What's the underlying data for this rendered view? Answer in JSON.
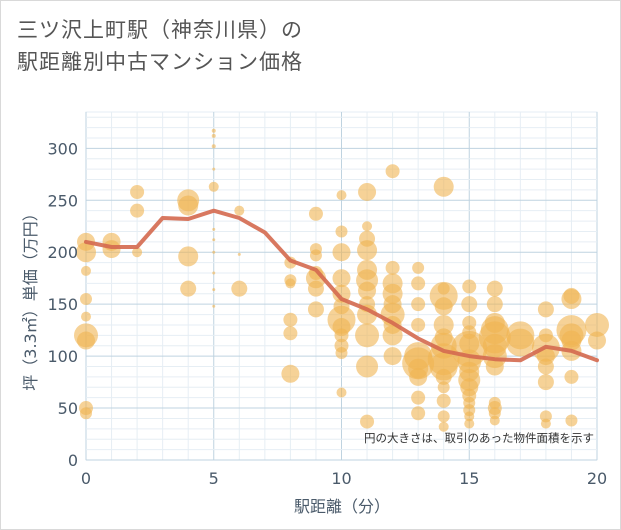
{
  "chart_data": {
    "type": "scatter",
    "title_lines": [
      "三ツ沢上町駅（神奈川県）の",
      "駅距離別中古マンション価格"
    ],
    "xlabel": "駅距離（分）",
    "ylabel": "坪（3.3㎡）単価（万円）",
    "xlim": [
      0,
      20
    ],
    "ylim": [
      0,
      335
    ],
    "xticks": [
      0,
      5,
      10,
      15,
      20
    ],
    "yticks": [
      0,
      50,
      100,
      150,
      200,
      250,
      300
    ],
    "note": "円の大きさは、取引のあった物件面積を示す",
    "colors": {
      "bubble": "#f0b451",
      "trend": "#d4694f",
      "grid": "#e6eef4",
      "gridStrong": "#bfd3e0"
    },
    "bubbles": [
      {
        "x": 0,
        "y": 210,
        "s": 9
      },
      {
        "x": 0,
        "y": 200,
        "s": 10
      },
      {
        "x": 0,
        "y": 182,
        "s": 5
      },
      {
        "x": 0,
        "y": 155,
        "s": 6
      },
      {
        "x": 0,
        "y": 138,
        "s": 5
      },
      {
        "x": 0,
        "y": 120,
        "s": 12
      },
      {
        "x": 0,
        "y": 115,
        "s": 9
      },
      {
        "x": 0,
        "y": 50,
        "s": 7
      },
      {
        "x": 0,
        "y": 45,
        "s": 6
      },
      {
        "x": 1,
        "y": 210,
        "s": 9
      },
      {
        "x": 1,
        "y": 203,
        "s": 9
      },
      {
        "x": 2,
        "y": 258,
        "s": 7
      },
      {
        "x": 2,
        "y": 240,
        "s": 7
      },
      {
        "x": 2,
        "y": 200,
        "s": 5
      },
      {
        "x": 4,
        "y": 250,
        "s": 11
      },
      {
        "x": 4,
        "y": 245,
        "s": 10
      },
      {
        "x": 4,
        "y": 196,
        "s": 10
      },
      {
        "x": 4,
        "y": 165,
        "s": 8
      },
      {
        "x": 5,
        "y": 317,
        "s": 2
      },
      {
        "x": 5,
        "y": 312,
        "s": 2
      },
      {
        "x": 5,
        "y": 302,
        "s": 2
      },
      {
        "x": 5,
        "y": 280,
        "s": 1.5
      },
      {
        "x": 5,
        "y": 263,
        "s": 5
      },
      {
        "x": 5,
        "y": 222,
        "s": 1.5
      },
      {
        "x": 5,
        "y": 212,
        "s": 1.5
      },
      {
        "x": 5,
        "y": 200,
        "s": 1.5
      },
      {
        "x": 5,
        "y": 180,
        "s": 1.5
      },
      {
        "x": 5,
        "y": 164,
        "s": 1.5
      },
      {
        "x": 5,
        "y": 148,
        "s": 1.5
      },
      {
        "x": 6,
        "y": 240,
        "s": 5
      },
      {
        "x": 6,
        "y": 198,
        "s": 1.5
      },
      {
        "x": 6,
        "y": 165,
        "s": 8
      },
      {
        "x": 8,
        "y": 190,
        "s": 6
      },
      {
        "x": 8,
        "y": 173,
        "s": 6
      },
      {
        "x": 8,
        "y": 170,
        "s": 5
      },
      {
        "x": 8,
        "y": 135,
        "s": 7
      },
      {
        "x": 8,
        "y": 122,
        "s": 7
      },
      {
        "x": 8,
        "y": 83,
        "s": 9
      },
      {
        "x": 9,
        "y": 237,
        "s": 7
      },
      {
        "x": 9,
        "y": 203,
        "s": 6
      },
      {
        "x": 9,
        "y": 197,
        "s": 6
      },
      {
        "x": 9,
        "y": 180,
        "s": 7
      },
      {
        "x": 9,
        "y": 175,
        "s": 10
      },
      {
        "x": 9,
        "y": 165,
        "s": 8
      },
      {
        "x": 9,
        "y": 145,
        "s": 8
      },
      {
        "x": 10,
        "y": 255,
        "s": 5
      },
      {
        "x": 10,
        "y": 220,
        "s": 6
      },
      {
        "x": 10,
        "y": 200,
        "s": 9
      },
      {
        "x": 10,
        "y": 175,
        "s": 9
      },
      {
        "x": 10,
        "y": 160,
        "s": 9
      },
      {
        "x": 10,
        "y": 148,
        "s": 8
      },
      {
        "x": 10,
        "y": 135,
        "s": 14
      },
      {
        "x": 10,
        "y": 128,
        "s": 9
      },
      {
        "x": 10,
        "y": 120,
        "s": 7
      },
      {
        "x": 10,
        "y": 110,
        "s": 7
      },
      {
        "x": 10,
        "y": 103,
        "s": 6
      },
      {
        "x": 10,
        "y": 65,
        "s": 5
      },
      {
        "x": 11,
        "y": 258,
        "s": 9
      },
      {
        "x": 11,
        "y": 225,
        "s": 5
      },
      {
        "x": 11,
        "y": 213,
        "s": 8
      },
      {
        "x": 11,
        "y": 202,
        "s": 10
      },
      {
        "x": 11,
        "y": 183,
        "s": 10
      },
      {
        "x": 11,
        "y": 173,
        "s": 11
      },
      {
        "x": 11,
        "y": 163,
        "s": 9
      },
      {
        "x": 11,
        "y": 150,
        "s": 8
      },
      {
        "x": 11,
        "y": 140,
        "s": 10
      },
      {
        "x": 11,
        "y": 120,
        "s": 12
      },
      {
        "x": 11,
        "y": 90,
        "s": 11
      },
      {
        "x": 11,
        "y": 37,
        "s": 7
      },
      {
        "x": 12,
        "y": 278,
        "s": 7
      },
      {
        "x": 12,
        "y": 185,
        "s": 7
      },
      {
        "x": 12,
        "y": 170,
        "s": 10
      },
      {
        "x": 12,
        "y": 160,
        "s": 10
      },
      {
        "x": 12,
        "y": 150,
        "s": 9
      },
      {
        "x": 12,
        "y": 140,
        "s": 12
      },
      {
        "x": 12,
        "y": 130,
        "s": 9
      },
      {
        "x": 12,
        "y": 120,
        "s": 10
      },
      {
        "x": 12,
        "y": 100,
        "s": 9
      },
      {
        "x": 13,
        "y": 185,
        "s": 6
      },
      {
        "x": 13,
        "y": 170,
        "s": 7
      },
      {
        "x": 13,
        "y": 150,
        "s": 7
      },
      {
        "x": 13,
        "y": 130,
        "s": 7
      },
      {
        "x": 13,
        "y": 100,
        "s": 14
      },
      {
        "x": 13,
        "y": 93,
        "s": 16
      },
      {
        "x": 13,
        "y": 88,
        "s": 10
      },
      {
        "x": 13,
        "y": 80,
        "s": 9
      },
      {
        "x": 13,
        "y": 60,
        "s": 7
      },
      {
        "x": 13,
        "y": 45,
        "s": 7
      },
      {
        "x": 14,
        "y": 263,
        "s": 10
      },
      {
        "x": 14,
        "y": 165,
        "s": 6
      },
      {
        "x": 14,
        "y": 158,
        "s": 14
      },
      {
        "x": 14,
        "y": 148,
        "s": 9
      },
      {
        "x": 14,
        "y": 130,
        "s": 10
      },
      {
        "x": 14,
        "y": 118,
        "s": 9
      },
      {
        "x": 14,
        "y": 110,
        "s": 13
      },
      {
        "x": 14,
        "y": 97,
        "s": 16
      },
      {
        "x": 14,
        "y": 90,
        "s": 14
      },
      {
        "x": 14,
        "y": 80,
        "s": 8
      },
      {
        "x": 14,
        "y": 70,
        "s": 6
      },
      {
        "x": 14,
        "y": 57,
        "s": 7
      },
      {
        "x": 14,
        "y": 42,
        "s": 6
      },
      {
        "x": 14,
        "y": 32,
        "s": 5
      },
      {
        "x": 15,
        "y": 167,
        "s": 7
      },
      {
        "x": 15,
        "y": 150,
        "s": 8
      },
      {
        "x": 15,
        "y": 132,
        "s": 7
      },
      {
        "x": 15,
        "y": 123,
        "s": 7
      },
      {
        "x": 15,
        "y": 112,
        "s": 10
      },
      {
        "x": 15,
        "y": 107,
        "s": 18
      },
      {
        "x": 15,
        "y": 95,
        "s": 12
      },
      {
        "x": 15,
        "y": 85,
        "s": 10
      },
      {
        "x": 15,
        "y": 77,
        "s": 11
      },
      {
        "x": 15,
        "y": 70,
        "s": 9
      },
      {
        "x": 15,
        "y": 62,
        "s": 7
      },
      {
        "x": 15,
        "y": 55,
        "s": 6
      },
      {
        "x": 15,
        "y": 48,
        "s": 6
      },
      {
        "x": 15,
        "y": 42,
        "s": 5
      },
      {
        "x": 15,
        "y": 35,
        "s": 5
      },
      {
        "x": 16,
        "y": 165,
        "s": 8
      },
      {
        "x": 16,
        "y": 150,
        "s": 8
      },
      {
        "x": 16,
        "y": 132,
        "s": 10
      },
      {
        "x": 16,
        "y": 125,
        "s": 14
      },
      {
        "x": 16,
        "y": 118,
        "s": 16
      },
      {
        "x": 16,
        "y": 110,
        "s": 12
      },
      {
        "x": 16,
        "y": 100,
        "s": 12
      },
      {
        "x": 16,
        "y": 90,
        "s": 9
      },
      {
        "x": 16,
        "y": 55,
        "s": 6
      },
      {
        "x": 16,
        "y": 50,
        "s": 7
      },
      {
        "x": 16,
        "y": 45,
        "s": 6
      },
      {
        "x": 16,
        "y": 38,
        "s": 5
      },
      {
        "x": 17,
        "y": 120,
        "s": 14
      },
      {
        "x": 17,
        "y": 113,
        "s": 14
      },
      {
        "x": 18,
        "y": 145,
        "s": 8
      },
      {
        "x": 18,
        "y": 120,
        "s": 7
      },
      {
        "x": 18,
        "y": 108,
        "s": 14
      },
      {
        "x": 18,
        "y": 100,
        "s": 9
      },
      {
        "x": 18,
        "y": 90,
        "s": 8
      },
      {
        "x": 18,
        "y": 75,
        "s": 8
      },
      {
        "x": 18,
        "y": 42,
        "s": 6
      },
      {
        "x": 18,
        "y": 35,
        "s": 5
      },
      {
        "x": 19,
        "y": 158,
        "s": 8
      },
      {
        "x": 19,
        "y": 155,
        "s": 10
      },
      {
        "x": 19,
        "y": 125,
        "s": 15
      },
      {
        "x": 19,
        "y": 120,
        "s": 12
      },
      {
        "x": 19,
        "y": 115,
        "s": 10
      },
      {
        "x": 19,
        "y": 105,
        "s": 10
      },
      {
        "x": 19,
        "y": 80,
        "s": 7
      },
      {
        "x": 19,
        "y": 38,
        "s": 6
      },
      {
        "x": 20,
        "y": 130,
        "s": 12
      },
      {
        "x": 20,
        "y": 115,
        "s": 9
      }
    ],
    "trend": {
      "x": [
        0,
        1,
        2,
        3,
        4,
        5,
        6,
        7,
        8,
        9,
        10,
        11,
        12,
        13,
        14,
        15,
        16,
        17,
        18,
        19,
        20
      ],
      "y": [
        210,
        205,
        205,
        233,
        232,
        240,
        233,
        219,
        192,
        183,
        155,
        145,
        132,
        117,
        105,
        100,
        97,
        96,
        109,
        105,
        96
      ]
    }
  }
}
